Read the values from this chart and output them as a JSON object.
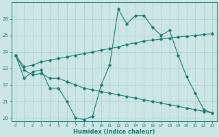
{
  "xlabel": "Humidex (Indice chaleur)",
  "background_color": "#cce5e5",
  "line_color": "#1a7a6e",
  "grid_color": "#aacfcf",
  "xlim": [
    -0.5,
    23.5
  ],
  "ylim": [
    19.8,
    27.0
  ],
  "yticks": [
    20,
    21,
    22,
    23,
    24,
    25,
    26
  ],
  "xticks": [
    0,
    1,
    2,
    3,
    4,
    5,
    6,
    7,
    8,
    9,
    10,
    11,
    12,
    13,
    14,
    15,
    16,
    17,
    18,
    19,
    20,
    21,
    22,
    23
  ],
  "line1_x": [
    0,
    1,
    2,
    3,
    4,
    5,
    6,
    7,
    8,
    9,
    10,
    11,
    12,
    13,
    14,
    15,
    16,
    17,
    18,
    19,
    20,
    21,
    22,
    23
  ],
  "line1_y": [
    23.8,
    22.4,
    22.8,
    22.9,
    21.8,
    21.8,
    21.0,
    20.0,
    19.9,
    20.1,
    22.0,
    23.2,
    26.6,
    25.7,
    26.2,
    26.2,
    25.5,
    25.0,
    25.3,
    23.8,
    22.5,
    21.5,
    20.5,
    20.3
  ],
  "line2_x": [
    0,
    1,
    2,
    3,
    4,
    5,
    6,
    7,
    8,
    9,
    10,
    11,
    12,
    13,
    14,
    15,
    16,
    17,
    18,
    19,
    20,
    21,
    22,
    23
  ],
  "line2_y": [
    23.8,
    23.1,
    23.2,
    23.4,
    23.5,
    23.6,
    23.7,
    23.8,
    23.9,
    24.0,
    24.1,
    24.2,
    24.3,
    24.45,
    24.55,
    24.65,
    24.72,
    24.78,
    24.84,
    24.9,
    24.95,
    25.0,
    25.05,
    25.1
  ],
  "line3_x": [
    0,
    1,
    2,
    3,
    4,
    5,
    6,
    7,
    8,
    9,
    10,
    11,
    12,
    13,
    14,
    15,
    16,
    17,
    18,
    19,
    20,
    21,
    22,
    23
  ],
  "line3_y": [
    23.8,
    22.9,
    22.6,
    22.7,
    22.4,
    22.4,
    22.2,
    22.0,
    21.8,
    21.7,
    21.6,
    21.5,
    21.4,
    21.3,
    21.2,
    21.1,
    21.0,
    20.9,
    20.8,
    20.7,
    20.6,
    20.5,
    20.4,
    20.3
  ]
}
